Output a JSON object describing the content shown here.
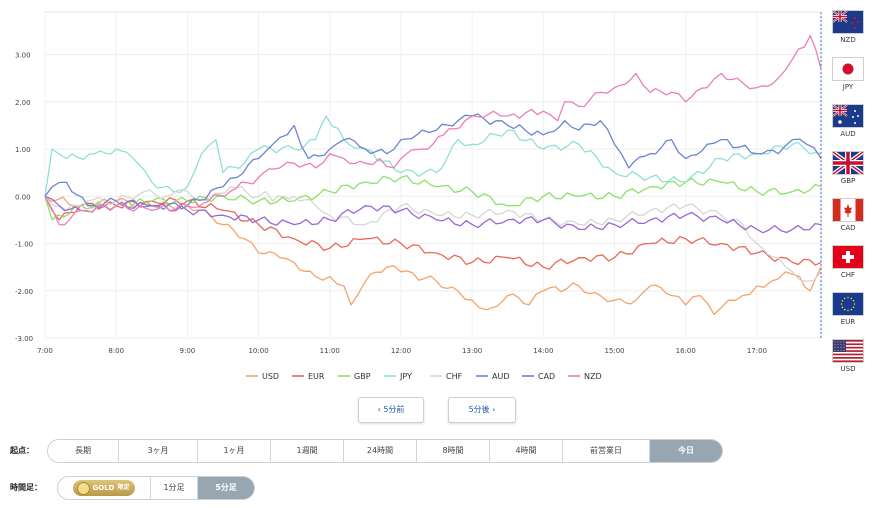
{
  "chart_data": {
    "type": "line",
    "title": "",
    "xlabel": "",
    "ylabel": "",
    "x_ticks": [
      "7:00",
      "8:00",
      "9:00",
      "10:00",
      "11:00",
      "12:00",
      "13:00",
      "14:00",
      "15:00",
      "16:00",
      "17:00"
    ],
    "x_start": 7.0,
    "x_end": 17.9,
    "ylim": [
      -3.0,
      3.9
    ],
    "y_ticks": [
      3.0,
      2.0,
      1.0,
      0.0,
      -1.0,
      -2.0,
      -3.0
    ],
    "y_tick_labels": [
      "3.00",
      "2.00",
      "1.00",
      "0.00",
      "-1.00",
      "-2.00",
      "-3.00"
    ],
    "grid": true,
    "legend_position": "bottom",
    "series": [
      {
        "name": "USD",
        "color": "#f4a46a",
        "points": [
          [
            7.0,
            0.0
          ],
          [
            7.5,
            -0.2
          ],
          [
            8.0,
            -0.1
          ],
          [
            8.5,
            -0.2
          ],
          [
            9.0,
            -0.2
          ],
          [
            9.25,
            -0.3
          ],
          [
            9.5,
            -0.6
          ],
          [
            9.8,
            -0.9
          ],
          [
            10.0,
            -1.2
          ],
          [
            10.3,
            -1.3
          ],
          [
            10.5,
            -1.4
          ],
          [
            10.8,
            -1.7
          ],
          [
            11.0,
            -1.7
          ],
          [
            11.2,
            -1.9
          ],
          [
            11.3,
            -2.3
          ],
          [
            11.5,
            -1.8
          ],
          [
            11.8,
            -1.5
          ],
          [
            12.0,
            -1.6
          ],
          [
            12.5,
            -1.8
          ],
          [
            12.8,
            -2.0
          ],
          [
            13.0,
            -2.2
          ],
          [
            13.2,
            -2.4
          ],
          [
            13.5,
            -2.1
          ],
          [
            13.8,
            -2.3
          ],
          [
            14.0,
            -2.0
          ],
          [
            14.5,
            -1.9
          ],
          [
            14.8,
            -2.1
          ],
          [
            15.0,
            -2.2
          ],
          [
            15.3,
            -2.2
          ],
          [
            15.5,
            -1.9
          ],
          [
            15.8,
            -2.1
          ],
          [
            16.0,
            -2.3
          ],
          [
            16.2,
            -2.1
          ],
          [
            16.4,
            -2.5
          ],
          [
            16.6,
            -2.2
          ],
          [
            16.8,
            -2.1
          ],
          [
            17.0,
            -1.9
          ],
          [
            17.2,
            -1.8
          ],
          [
            17.4,
            -1.6
          ],
          [
            17.6,
            -1.7
          ],
          [
            17.75,
            -2.0
          ],
          [
            17.9,
            -1.5
          ]
        ]
      },
      {
        "name": "EUR",
        "color": "#e8685a",
        "points": [
          [
            7.0,
            0.0
          ],
          [
            7.2,
            -0.5
          ],
          [
            7.5,
            -0.2
          ],
          [
            8.0,
            -0.2
          ],
          [
            8.5,
            -0.1
          ],
          [
            9.0,
            -0.1
          ],
          [
            9.5,
            -0.3
          ],
          [
            10.0,
            -0.6
          ],
          [
            10.5,
            -0.9
          ],
          [
            11.0,
            -1.1
          ],
          [
            11.5,
            -0.9
          ],
          [
            12.0,
            -1.0
          ],
          [
            12.5,
            -1.2
          ],
          [
            13.0,
            -1.4
          ],
          [
            13.5,
            -1.3
          ],
          [
            14.0,
            -1.5
          ],
          [
            14.5,
            -1.3
          ],
          [
            15.0,
            -1.3
          ],
          [
            15.5,
            -1.0
          ],
          [
            16.0,
            -0.9
          ],
          [
            16.5,
            -1.0
          ],
          [
            17.0,
            -1.2
          ],
          [
            17.5,
            -1.4
          ],
          [
            17.9,
            -1.4
          ]
        ]
      },
      {
        "name": "GBP",
        "color": "#8ee06a",
        "points": [
          [
            7.0,
            0.0
          ],
          [
            7.1,
            -0.5
          ],
          [
            7.5,
            -0.2
          ],
          [
            8.0,
            -0.2
          ],
          [
            8.5,
            -0.1
          ],
          [
            9.0,
            -0.1
          ],
          [
            9.5,
            0.0
          ],
          [
            10.0,
            -0.1
          ],
          [
            10.5,
            -0.1
          ],
          [
            11.0,
            0.1
          ],
          [
            11.5,
            0.3
          ],
          [
            12.0,
            0.4
          ],
          [
            12.5,
            0.2
          ],
          [
            13.0,
            0.1
          ],
          [
            13.5,
            -0.2
          ],
          [
            14.0,
            0.0
          ],
          [
            14.5,
            0.0
          ],
          [
            15.0,
            0.0
          ],
          [
            15.5,
            0.2
          ],
          [
            16.0,
            0.3
          ],
          [
            16.5,
            0.3
          ],
          [
            17.0,
            0.1
          ],
          [
            17.5,
            0.1
          ],
          [
            17.9,
            0.2
          ]
        ]
      },
      {
        "name": "JPY",
        "color": "#8fe0d6",
        "points": [
          [
            7.0,
            0.0
          ],
          [
            7.1,
            1.0
          ],
          [
            7.3,
            0.8
          ],
          [
            7.7,
            0.9
          ],
          [
            8.0,
            1.0
          ],
          [
            8.3,
            0.7
          ],
          [
            8.5,
            0.3
          ],
          [
            8.8,
            0.1
          ],
          [
            9.0,
            0.2
          ],
          [
            9.2,
            0.9
          ],
          [
            9.4,
            1.2
          ],
          [
            9.5,
            0.5
          ],
          [
            9.8,
            0.7
          ],
          [
            10.0,
            1.0
          ],
          [
            10.5,
            1.0
          ],
          [
            10.8,
            1.2
          ],
          [
            10.95,
            1.7
          ],
          [
            11.2,
            1.2
          ],
          [
            11.5,
            1.0
          ],
          [
            12.0,
            0.5
          ],
          [
            12.5,
            0.5
          ],
          [
            12.8,
            1.2
          ],
          [
            13.0,
            1.1
          ],
          [
            13.5,
            1.4
          ],
          [
            14.0,
            1.0
          ],
          [
            14.5,
            1.1
          ],
          [
            15.0,
            0.5
          ],
          [
            15.5,
            0.4
          ],
          [
            16.0,
            0.3
          ],
          [
            16.5,
            0.8
          ],
          [
            17.0,
            0.9
          ],
          [
            17.5,
            1.1
          ],
          [
            17.9,
            0.9
          ]
        ]
      },
      {
        "name": "CHF",
        "color": "#d6d6d6",
        "points": [
          [
            7.0,
            0.0
          ],
          [
            7.3,
            -0.3
          ],
          [
            7.6,
            -0.1
          ],
          [
            8.0,
            -0.1
          ],
          [
            8.4,
            0.1
          ],
          [
            8.7,
            0.0
          ],
          [
            9.0,
            0.1
          ],
          [
            9.3,
            -0.1
          ],
          [
            9.6,
            0.2
          ],
          [
            10.0,
            0.0
          ],
          [
            10.1,
            0.1
          ],
          [
            10.2,
            -0.1
          ],
          [
            10.5,
            0.0
          ],
          [
            10.8,
            -0.2
          ],
          [
            11.0,
            -0.4
          ],
          [
            11.5,
            -0.6
          ],
          [
            12.0,
            -0.2
          ],
          [
            12.5,
            -0.4
          ],
          [
            13.0,
            -0.4
          ],
          [
            13.5,
            -0.3
          ],
          [
            14.0,
            -0.5
          ],
          [
            14.5,
            -0.6
          ],
          [
            15.0,
            -0.5
          ],
          [
            15.5,
            -0.3
          ],
          [
            16.0,
            -0.2
          ],
          [
            16.5,
            -0.4
          ],
          [
            16.8,
            -0.6
          ],
          [
            17.0,
            -1.0
          ],
          [
            17.3,
            -1.3
          ],
          [
            17.5,
            -1.6
          ],
          [
            17.7,
            -1.8
          ],
          [
            17.9,
            -1.6
          ]
        ]
      },
      {
        "name": "AUD",
        "color": "#6a86d2",
        "points": [
          [
            7.0,
            0.0
          ],
          [
            7.1,
            0.2
          ],
          [
            7.3,
            0.3
          ],
          [
            7.6,
            -0.2
          ],
          [
            8.0,
            -0.1
          ],
          [
            8.5,
            -0.2
          ],
          [
            9.0,
            -0.2
          ],
          [
            9.5,
            0.2
          ],
          [
            9.7,
            0.4
          ],
          [
            10.0,
            0.8
          ],
          [
            10.2,
            1.1
          ],
          [
            10.4,
            1.3
          ],
          [
            10.5,
            1.5
          ],
          [
            10.7,
            0.8
          ],
          [
            11.0,
            1.0
          ],
          [
            11.2,
            1.2
          ],
          [
            11.5,
            1.0
          ],
          [
            11.8,
            0.9
          ],
          [
            12.0,
            1.2
          ],
          [
            12.3,
            1.4
          ],
          [
            12.5,
            1.4
          ],
          [
            12.8,
            1.6
          ],
          [
            13.0,
            1.7
          ],
          [
            13.5,
            1.5
          ],
          [
            14.0,
            1.3
          ],
          [
            14.3,
            1.6
          ],
          [
            14.5,
            1.4
          ],
          [
            14.8,
            1.6
          ],
          [
            15.0,
            1.1
          ],
          [
            15.2,
            0.6
          ],
          [
            15.5,
            0.9
          ],
          [
            15.8,
            1.2
          ],
          [
            16.0,
            0.8
          ],
          [
            16.3,
            1.1
          ],
          [
            16.5,
            1.2
          ],
          [
            17.0,
            0.9
          ],
          [
            17.3,
            0.9
          ],
          [
            17.5,
            1.2
          ],
          [
            17.7,
            1.1
          ],
          [
            17.9,
            0.8
          ]
        ]
      },
      {
        "name": "CAD",
        "color": "#9a68d4",
        "points": [
          [
            7.0,
            0.0
          ],
          [
            7.2,
            -0.2
          ],
          [
            7.5,
            -0.3
          ],
          [
            8.0,
            -0.2
          ],
          [
            8.5,
            -0.2
          ],
          [
            9.0,
            -0.3
          ],
          [
            9.5,
            -0.4
          ],
          [
            10.0,
            -0.5
          ],
          [
            10.5,
            -0.6
          ],
          [
            11.0,
            -0.5
          ],
          [
            11.5,
            -0.2
          ],
          [
            12.0,
            -0.3
          ],
          [
            12.5,
            -0.5
          ],
          [
            13.0,
            -0.6
          ],
          [
            13.5,
            -0.5
          ],
          [
            14.0,
            -0.5
          ],
          [
            14.5,
            -0.7
          ],
          [
            15.0,
            -0.6
          ],
          [
            15.5,
            -0.5
          ],
          [
            16.0,
            -0.4
          ],
          [
            16.5,
            -0.5
          ],
          [
            17.0,
            -0.7
          ],
          [
            17.5,
            -0.7
          ],
          [
            17.9,
            -0.6
          ]
        ]
      },
      {
        "name": "NZD",
        "color": "#ea7fb8",
        "points": [
          [
            7.0,
            0.0
          ],
          [
            7.2,
            -0.6
          ],
          [
            7.5,
            -0.3
          ],
          [
            8.0,
            -0.2
          ],
          [
            8.5,
            -0.3
          ],
          [
            9.0,
            -0.2
          ],
          [
            9.3,
            -0.1
          ],
          [
            9.6,
            0.1
          ],
          [
            10.0,
            0.4
          ],
          [
            10.3,
            0.6
          ],
          [
            10.5,
            0.7
          ],
          [
            10.8,
            0.6
          ],
          [
            11.0,
            0.9
          ],
          [
            11.2,
            0.8
          ],
          [
            11.5,
            0.7
          ],
          [
            11.7,
            0.8
          ],
          [
            11.9,
            0.6
          ],
          [
            12.0,
            0.8
          ],
          [
            12.3,
            1.0
          ],
          [
            12.6,
            1.3
          ],
          [
            12.9,
            1.6
          ],
          [
            13.0,
            1.7
          ],
          [
            13.3,
            1.8
          ],
          [
            13.5,
            1.7
          ],
          [
            14.0,
            1.8
          ],
          [
            14.2,
            1.6
          ],
          [
            14.3,
            2.0
          ],
          [
            14.5,
            1.9
          ],
          [
            14.8,
            2.2
          ],
          [
            15.0,
            2.3
          ],
          [
            15.3,
            2.6
          ],
          [
            15.5,
            2.2
          ],
          [
            15.8,
            2.2
          ],
          [
            16.0,
            2.0
          ],
          [
            16.3,
            2.3
          ],
          [
            16.5,
            2.6
          ],
          [
            16.8,
            2.4
          ],
          [
            17.0,
            2.3
          ],
          [
            17.3,
            2.5
          ],
          [
            17.5,
            2.9
          ],
          [
            17.75,
            3.4
          ],
          [
            17.9,
            2.7
          ]
        ]
      }
    ]
  },
  "flags": [
    {
      "code": "NZD",
      "icon": "nz-flag-icon"
    },
    {
      "code": "JPY",
      "icon": "jp-flag-icon"
    },
    {
      "code": "AUD",
      "icon": "au-flag-icon"
    },
    {
      "code": "GBP",
      "icon": "gb-flag-icon"
    },
    {
      "code": "CAD",
      "icon": "ca-flag-icon"
    },
    {
      "code": "CHF",
      "icon": "ch-flag-icon"
    },
    {
      "code": "EUR",
      "icon": "eu-flag-icon"
    },
    {
      "code": "USD",
      "icon": "us-flag-icon"
    }
  ],
  "nav": {
    "prev_label": "‹ 5分前",
    "next_label": "5分後 ›"
  },
  "start_point": {
    "label": "起点：",
    "options": [
      "長期",
      "3ヶ月",
      "1ヶ月",
      "1週間",
      "24時間",
      "8時間",
      "4時間",
      "前営業日",
      "今日"
    ],
    "selected": "今日"
  },
  "interval": {
    "label": "時間足：",
    "gold_label": "GOLD",
    "gold_limited": "限定",
    "options": [
      "1分足",
      "5分足"
    ],
    "selected": "5分足"
  }
}
